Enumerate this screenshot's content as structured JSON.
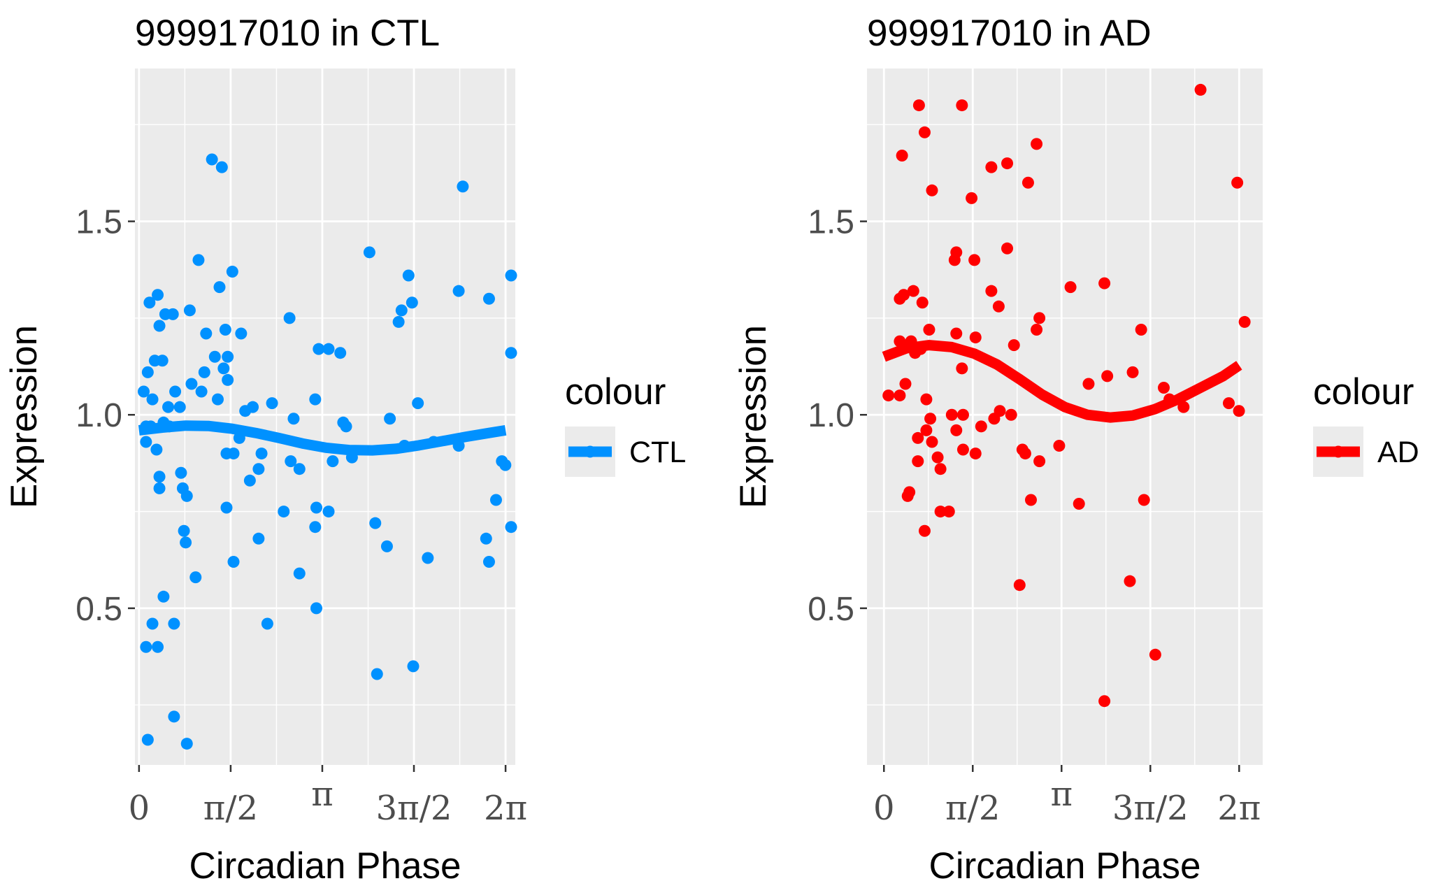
{
  "chart_data": [
    {
      "type": "scatter",
      "title": "999917010 in CTL",
      "xlabel": "Circadian Phase",
      "ylabel": "Expression",
      "xlim": [
        -0.07,
        6.45
      ],
      "ylim": [
        0.095,
        1.895
      ],
      "x_ticks": [
        0,
        1.5708,
        3.1416,
        4.7124,
        6.2832
      ],
      "x_tick_labels": [
        "0",
        "π/2",
        "π",
        "3π/2",
        "2π"
      ],
      "y_ticks": [
        0.5,
        1.0,
        1.5
      ],
      "y_tick_labels": [
        "0.5",
        "1.0",
        "1.5"
      ],
      "grid": true,
      "legend": {
        "title": "colour",
        "position": "right",
        "entries": [
          "CTL"
        ]
      },
      "series": [
        {
          "name": "CTL",
          "color": "#0091FF",
          "points": [
            [
              0.08,
              1.06
            ],
            [
              0.12,
              0.97
            ],
            [
              0.12,
              0.93
            ],
            [
              0.12,
              0.4
            ],
            [
              0.15,
              1.11
            ],
            [
              0.15,
              0.16
            ],
            [
              0.18,
              1.29
            ],
            [
              0.2,
              0.97
            ],
            [
              0.23,
              1.04
            ],
            [
              0.23,
              0.46
            ],
            [
              0.27,
              1.14
            ],
            [
              0.3,
              0.91
            ],
            [
              0.32,
              1.31
            ],
            [
              0.32,
              0.4
            ],
            [
              0.35,
              1.23
            ],
            [
              0.35,
              0.84
            ],
            [
              0.35,
              0.81
            ],
            [
              0.4,
              1.14
            ],
            [
              0.42,
              0.98
            ],
            [
              0.42,
              0.53
            ],
            [
              0.45,
              1.26
            ],
            [
              0.5,
              1.02
            ],
            [
              0.52,
              0.97
            ],
            [
              0.58,
              1.26
            ],
            [
              0.6,
              0.46
            ],
            [
              0.6,
              0.22
            ],
            [
              0.62,
              1.06
            ],
            [
              0.7,
              1.02
            ],
            [
              0.72,
              0.85
            ],
            [
              0.75,
              0.81
            ],
            [
              0.77,
              0.7
            ],
            [
              0.8,
              0.67
            ],
            [
              0.82,
              0.79
            ],
            [
              0.82,
              0.15
            ],
            [
              0.87,
              1.27
            ],
            [
              0.9,
              1.08
            ],
            [
              0.97,
              0.58
            ],
            [
              1.02,
              1.4
            ],
            [
              1.07,
              1.06
            ],
            [
              1.12,
              1.11
            ],
            [
              1.15,
              1.21
            ],
            [
              1.25,
              1.66
            ],
            [
              1.3,
              1.15
            ],
            [
              1.35,
              1.04
            ],
            [
              1.38,
              1.33
            ],
            [
              1.42,
              1.64
            ],
            [
              1.45,
              1.12
            ],
            [
              1.48,
              1.22
            ],
            [
              1.5,
              0.9
            ],
            [
              1.5,
              0.76
            ],
            [
              1.52,
              1.15
            ],
            [
              1.52,
              1.09
            ],
            [
              1.6,
              1.37
            ],
            [
              1.62,
              0.9
            ],
            [
              1.62,
              0.62
            ],
            [
              1.72,
              0.94
            ],
            [
              1.75,
              1.21
            ],
            [
              1.82,
              1.01
            ],
            [
              1.9,
              0.83
            ],
            [
              1.95,
              1.02
            ],
            [
              2.05,
              0.86
            ],
            [
              2.05,
              0.68
            ],
            [
              2.1,
              0.9
            ],
            [
              2.2,
              0.46
            ],
            [
              2.28,
              1.03
            ],
            [
              2.48,
              0.75
            ],
            [
              2.58,
              1.25
            ],
            [
              2.6,
              0.88
            ],
            [
              2.65,
              0.99
            ],
            [
              2.75,
              0.86
            ],
            [
              2.75,
              0.59
            ],
            [
              3.02,
              1.04
            ],
            [
              3.02,
              0.71
            ],
            [
              3.04,
              0.76
            ],
            [
              3.04,
              0.5
            ],
            [
              3.08,
              1.17
            ],
            [
              3.25,
              1.17
            ],
            [
              3.25,
              0.75
            ],
            [
              3.32,
              0.88
            ],
            [
              3.45,
              1.16
            ],
            [
              3.5,
              0.98
            ],
            [
              3.55,
              0.97
            ],
            [
              3.65,
              0.89
            ],
            [
              3.95,
              1.42
            ],
            [
              4.05,
              0.72
            ],
            [
              4.08,
              0.33
            ],
            [
              4.25,
              0.66
            ],
            [
              4.3,
              0.99
            ],
            [
              4.45,
              1.24
            ],
            [
              4.5,
              1.27
            ],
            [
              4.55,
              0.92
            ],
            [
              4.62,
              1.36
            ],
            [
              4.68,
              1.29
            ],
            [
              4.7,
              0.35
            ],
            [
              4.78,
              1.03
            ],
            [
              4.95,
              0.63
            ],
            [
              5.05,
              0.93
            ],
            [
              5.48,
              0.92
            ],
            [
              5.48,
              1.32
            ],
            [
              5.55,
              1.59
            ],
            [
              5.95,
              0.68
            ],
            [
              6.0,
              1.3
            ],
            [
              6.0,
              0.62
            ],
            [
              6.12,
              0.78
            ],
            [
              6.22,
              0.88
            ],
            [
              6.28,
              0.87
            ],
            [
              6.38,
              0.71
            ],
            [
              6.55,
              1.16
            ],
            [
              6.6,
              1.36
            ]
          ],
          "fit": [
            [
              0,
              0.96
            ],
            [
              0.4,
              0.967
            ],
            [
              0.8,
              0.972
            ],
            [
              1.2,
              0.971
            ],
            [
              1.6,
              0.964
            ],
            [
              2.0,
              0.953
            ],
            [
              2.4,
              0.94
            ],
            [
              2.8,
              0.926
            ],
            [
              3.2,
              0.915
            ],
            [
              3.6,
              0.909
            ],
            [
              4.0,
              0.908
            ],
            [
              4.4,
              0.912
            ],
            [
              4.8,
              0.921
            ],
            [
              5.2,
              0.932
            ],
            [
              5.6,
              0.943
            ],
            [
              6.0,
              0.953
            ],
            [
              6.283,
              0.96
            ]
          ]
        }
      ]
    },
    {
      "type": "scatter",
      "title": "999917010 in AD",
      "xlabel": "Circadian Phase",
      "ylabel": "Expression",
      "xlim": [
        -0.3,
        6.7
      ],
      "ylim": [
        0.095,
        1.895
      ],
      "x_ticks": [
        0,
        1.5708,
        3.1416,
        4.7124,
        6.2832
      ],
      "x_tick_labels": [
        "0",
        "π/2",
        "π",
        "3π/2",
        "2π"
      ],
      "y_ticks": [
        0.5,
        1.0,
        1.5
      ],
      "y_tick_labels": [
        "0.5",
        "1.0",
        "1.5"
      ],
      "grid": true,
      "legend": {
        "title": "colour",
        "position": "right",
        "entries": [
          "AD"
        ]
      },
      "series": [
        {
          "name": "AD",
          "color": "#FF0000",
          "points": [
            [
              0.08,
              1.05
            ],
            [
              0.28,
              1.3
            ],
            [
              0.28,
              1.19
            ],
            [
              0.28,
              1.05
            ],
            [
              0.32,
              1.67
            ],
            [
              0.35,
              1.31
            ],
            [
              0.38,
              1.08
            ],
            [
              0.42,
              0.79
            ],
            [
              0.45,
              0.8
            ],
            [
              0.48,
              1.19
            ],
            [
              0.52,
              1.32
            ],
            [
              0.55,
              1.16
            ],
            [
              0.6,
              0.94
            ],
            [
              0.6,
              0.88
            ],
            [
              0.62,
              1.8
            ],
            [
              0.65,
              1.17
            ],
            [
              0.68,
              1.29
            ],
            [
              0.72,
              1.73
            ],
            [
              0.72,
              0.7
            ],
            [
              0.75,
              1.04
            ],
            [
              0.75,
              0.96
            ],
            [
              0.8,
              1.22
            ],
            [
              0.82,
              0.99
            ],
            [
              0.85,
              1.58
            ],
            [
              0.85,
              0.93
            ],
            [
              0.95,
              0.89
            ],
            [
              1.0,
              0.86
            ],
            [
              1.0,
              0.75
            ],
            [
              1.15,
              0.75
            ],
            [
              1.2,
              1.0
            ],
            [
              1.25,
              1.4
            ],
            [
              1.28,
              1.42
            ],
            [
              1.28,
              1.21
            ],
            [
              1.28,
              0.96
            ],
            [
              1.38,
              1.8
            ],
            [
              1.38,
              1.12
            ],
            [
              1.4,
              1.0
            ],
            [
              1.4,
              0.91
            ],
            [
              1.55,
              1.56
            ],
            [
              1.6,
              1.4
            ],
            [
              1.62,
              1.2
            ],
            [
              1.62,
              0.9
            ],
            [
              1.72,
              0.97
            ],
            [
              1.9,
              1.64
            ],
            [
              1.9,
              1.32
            ],
            [
              1.95,
              0.99
            ],
            [
              2.03,
              1.28
            ],
            [
              2.05,
              1.01
            ],
            [
              2.18,
              1.65
            ],
            [
              2.18,
              1.43
            ],
            [
              2.25,
              1.0
            ],
            [
              2.3,
              1.18
            ],
            [
              2.4,
              0.56
            ],
            [
              2.45,
              0.91
            ],
            [
              2.5,
              0.9
            ],
            [
              2.55,
              1.6
            ],
            [
              2.6,
              0.78
            ],
            [
              2.7,
              1.7
            ],
            [
              2.7,
              1.22
            ],
            [
              2.75,
              1.25
            ],
            [
              2.75,
              0.88
            ],
            [
              3.1,
              0.92
            ],
            [
              3.3,
              1.33
            ],
            [
              3.45,
              0.77
            ],
            [
              3.62,
              1.08
            ],
            [
              3.9,
              1.34
            ],
            [
              3.9,
              0.26
            ],
            [
              3.95,
              1.1
            ],
            [
              4.35,
              0.57
            ],
            [
              4.4,
              1.11
            ],
            [
              4.55,
              1.22
            ],
            [
              4.6,
              0.78
            ],
            [
              4.8,
              0.38
            ],
            [
              4.95,
              1.07
            ],
            [
              5.05,
              1.04
            ],
            [
              5.3,
              1.02
            ],
            [
              5.6,
              1.84
            ],
            [
              6.1,
              1.03
            ],
            [
              6.25,
              1.6
            ],
            [
              6.28,
              1.01
            ],
            [
              6.38,
              1.24
            ]
          ],
          "fit": [
            [
              0,
              1.15
            ],
            [
              0.4,
              1.172
            ],
            [
              0.8,
              1.18
            ],
            [
              1.2,
              1.175
            ],
            [
              1.6,
              1.158
            ],
            [
              2.0,
              1.13
            ],
            [
              2.4,
              1.092
            ],
            [
              2.8,
              1.052
            ],
            [
              3.2,
              1.02
            ],
            [
              3.6,
              1.0
            ],
            [
              4.0,
              0.993
            ],
            [
              4.4,
              0.998
            ],
            [
              4.8,
              1.015
            ],
            [
              5.2,
              1.04
            ],
            [
              5.6,
              1.07
            ],
            [
              6.0,
              1.1
            ],
            [
              6.283,
              1.128
            ]
          ]
        }
      ]
    }
  ]
}
